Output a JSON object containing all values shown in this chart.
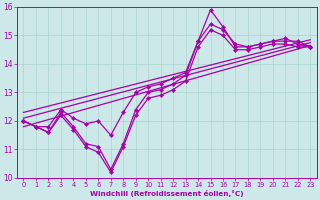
{
  "xlabel": "Windchill (Refroidissement éolien,°C)",
  "bg_color": "#cde8e8",
  "grid_color": "#aad4cc",
  "line_color": "#aa00aa",
  "x_hours": [
    0,
    1,
    2,
    3,
    4,
    5,
    6,
    7,
    8,
    9,
    10,
    11,
    12,
    13,
    14,
    15,
    16,
    17,
    18,
    19,
    20,
    21,
    22,
    23
  ],
  "y_main": [
    12.0,
    11.8,
    11.6,
    12.3,
    11.8,
    11.2,
    11.1,
    10.3,
    11.2,
    12.4,
    13.0,
    13.1,
    13.3,
    13.6,
    14.8,
    15.9,
    15.3,
    14.6,
    14.6,
    14.7,
    14.8,
    14.9,
    14.7,
    14.6
  ],
  "y_upper": [
    12.0,
    11.8,
    11.8,
    12.4,
    12.1,
    11.9,
    12.0,
    11.5,
    12.3,
    13.0,
    13.2,
    13.3,
    13.5,
    13.7,
    14.8,
    15.4,
    15.2,
    14.7,
    14.6,
    14.7,
    14.8,
    14.8,
    14.8,
    14.6
  ],
  "y_lower": [
    12.0,
    11.8,
    11.6,
    12.2,
    11.7,
    11.1,
    10.9,
    10.2,
    11.1,
    12.2,
    12.8,
    12.9,
    13.1,
    13.4,
    14.6,
    15.2,
    15.0,
    14.5,
    14.5,
    14.6,
    14.7,
    14.7,
    14.6,
    14.6
  ],
  "trend_lines": [
    [
      11.8,
      14.65
    ],
    [
      12.1,
      14.75
    ],
    [
      12.3,
      14.85
    ]
  ],
  "ylim": [
    10,
    16
  ],
  "xlim": [
    -0.5,
    23.5
  ],
  "yticks": [
    10,
    11,
    12,
    13,
    14,
    15,
    16
  ],
  "xticks": [
    0,
    1,
    2,
    3,
    4,
    5,
    6,
    7,
    8,
    9,
    10,
    11,
    12,
    13,
    14,
    15,
    16,
    17,
    18,
    19,
    20,
    21,
    22,
    23
  ],
  "marker": "D",
  "markersize": 2.2,
  "linewidth": 0.9
}
